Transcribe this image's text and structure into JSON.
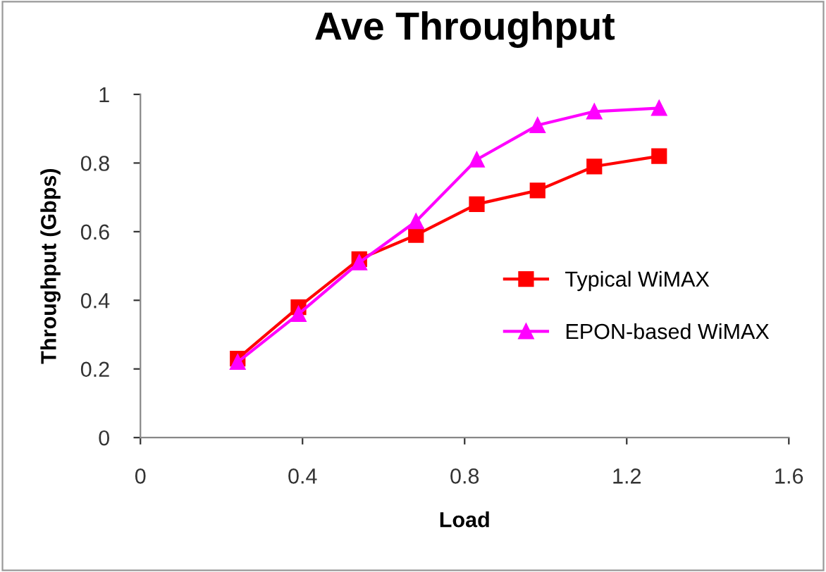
{
  "chart_data": {
    "type": "line",
    "title": "Ave Throughput",
    "xlabel": "Load",
    "ylabel": "Throughput (Gbps)",
    "x": [
      0.24,
      0.39,
      0.54,
      0.68,
      0.83,
      0.98,
      1.12,
      1.28
    ],
    "series": [
      {
        "name": "Typical WiMAX",
        "color": "#ff0000",
        "marker": "square",
        "values": [
          0.23,
          0.38,
          0.52,
          0.59,
          0.68,
          0.72,
          0.79,
          0.82
        ]
      },
      {
        "name": "EPON-based WiMAX",
        "color": "#ff00ff",
        "marker": "triangle",
        "values": [
          0.22,
          0.36,
          0.51,
          0.63,
          0.81,
          0.91,
          0.95,
          0.96
        ]
      }
    ],
    "xlim": [
      0,
      1.6
    ],
    "xticks": [
      0,
      0.4,
      0.8,
      1.2,
      1.6
    ],
    "ylim": [
      0,
      1
    ],
    "yticks": [
      0,
      0.2,
      0.4,
      0.6,
      0.8,
      1
    ],
    "grid": false,
    "legend": "right",
    "line_style": "solid"
  }
}
